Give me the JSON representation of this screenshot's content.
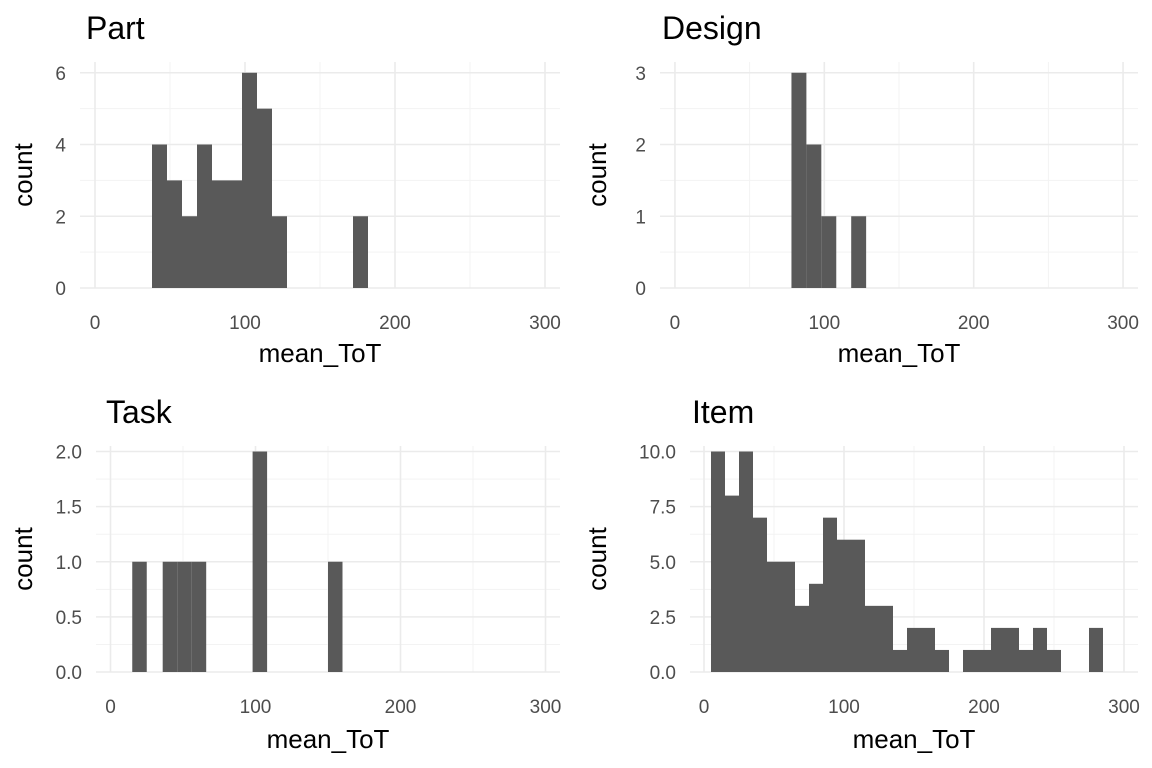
{
  "chart_data": [
    {
      "type": "bar",
      "title": "Part",
      "xlabel": "mean_ToT",
      "ylabel": "count",
      "xlim": [
        -10,
        310
      ],
      "ylim": [
        0,
        6.3
      ],
      "x_ticks": [
        0,
        100,
        200,
        300
      ],
      "y_ticks": [
        0,
        2,
        4,
        6
      ],
      "y_tick_labels": [
        "0",
        "2",
        "4",
        "6"
      ],
      "grid": true,
      "bin_width": 10,
      "bins": [
        {
          "x0": 38,
          "x1": 48,
          "count": 4
        },
        {
          "x0": 48,
          "x1": 58,
          "count": 3
        },
        {
          "x0": 58,
          "x1": 68,
          "count": 2
        },
        {
          "x0": 68,
          "x1": 78,
          "count": 4
        },
        {
          "x0": 78,
          "x1": 88,
          "count": 3
        },
        {
          "x0": 88,
          "x1": 98,
          "count": 3
        },
        {
          "x0": 98,
          "x1": 108,
          "count": 6
        },
        {
          "x0": 108,
          "x1": 118,
          "count": 5
        },
        {
          "x0": 118,
          "x1": 128,
          "count": 2
        },
        {
          "x0": 172,
          "x1": 182,
          "count": 2
        }
      ]
    },
    {
      "type": "bar",
      "title": "Design",
      "xlabel": "mean_ToT",
      "ylabel": "count",
      "xlim": [
        -10,
        310
      ],
      "ylim": [
        0,
        3.15
      ],
      "x_ticks": [
        0,
        100,
        200,
        300
      ],
      "y_ticks": [
        0,
        1,
        2,
        3
      ],
      "y_tick_labels": [
        "0",
        "1",
        "2",
        "3"
      ],
      "grid": true,
      "bin_width": 10,
      "bins": [
        {
          "x0": 78,
          "x1": 88,
          "count": 3
        },
        {
          "x0": 88,
          "x1": 98,
          "count": 2
        },
        {
          "x0": 98,
          "x1": 108,
          "count": 1
        },
        {
          "x0": 118,
          "x1": 128,
          "count": 1
        }
      ]
    },
    {
      "type": "bar",
      "title": "Task",
      "xlabel": "mean_ToT",
      "ylabel": "count",
      "xlim": [
        -10,
        310
      ],
      "ylim": [
        0,
        2.05
      ],
      "x_ticks": [
        0,
        100,
        200,
        300
      ],
      "y_ticks": [
        0,
        0.5,
        1,
        1.5,
        2
      ],
      "y_tick_labels": [
        "0.0",
        "0.5",
        "1.0",
        "1.5",
        "2.0"
      ],
      "grid": true,
      "bin_width": 10,
      "bins": [
        {
          "x0": 15,
          "x1": 25,
          "count": 1
        },
        {
          "x0": 36,
          "x1": 46,
          "count": 1
        },
        {
          "x0": 46,
          "x1": 56,
          "count": 1
        },
        {
          "x0": 56,
          "x1": 66,
          "count": 1
        },
        {
          "x0": 98,
          "x1": 108,
          "count": 2
        },
        {
          "x0": 150,
          "x1": 160,
          "count": 1
        }
      ]
    },
    {
      "type": "bar",
      "title": "Item",
      "xlabel": "mean_ToT",
      "ylabel": "count",
      "xlim": [
        -10,
        310
      ],
      "ylim": [
        0,
        10.25
      ],
      "x_ticks": [
        0,
        100,
        200,
        300
      ],
      "y_ticks": [
        0,
        2.5,
        5,
        7.5,
        10
      ],
      "y_tick_labels": [
        "0.0",
        "2.5",
        "5.0",
        "7.5",
        "10.0"
      ],
      "grid": true,
      "bin_width": 10,
      "bins": [
        {
          "x0": 5,
          "x1": 15,
          "count": 10
        },
        {
          "x0": 15,
          "x1": 25,
          "count": 8
        },
        {
          "x0": 25,
          "x1": 35,
          "count": 10
        },
        {
          "x0": 35,
          "x1": 45,
          "count": 7
        },
        {
          "x0": 45,
          "x1": 55,
          "count": 5
        },
        {
          "x0": 55,
          "x1": 65,
          "count": 5
        },
        {
          "x0": 65,
          "x1": 75,
          "count": 3
        },
        {
          "x0": 75,
          "x1": 85,
          "count": 4
        },
        {
          "x0": 85,
          "x1": 95,
          "count": 7
        },
        {
          "x0": 95,
          "x1": 105,
          "count": 6
        },
        {
          "x0": 105,
          "x1": 115,
          "count": 6
        },
        {
          "x0": 115,
          "x1": 125,
          "count": 3
        },
        {
          "x0": 125,
          "x1": 135,
          "count": 3
        },
        {
          "x0": 135,
          "x1": 145,
          "count": 1
        },
        {
          "x0": 145,
          "x1": 155,
          "count": 2
        },
        {
          "x0": 155,
          "x1": 165,
          "count": 2
        },
        {
          "x0": 165,
          "x1": 175,
          "count": 1
        },
        {
          "x0": 185,
          "x1": 195,
          "count": 1
        },
        {
          "x0": 195,
          "x1": 205,
          "count": 1
        },
        {
          "x0": 205,
          "x1": 215,
          "count": 2
        },
        {
          "x0": 215,
          "x1": 225,
          "count": 2
        },
        {
          "x0": 225,
          "x1": 235,
          "count": 1
        },
        {
          "x0": 235,
          "x1": 245,
          "count": 2
        },
        {
          "x0": 245,
          "x1": 255,
          "count": 1
        },
        {
          "x0": 275,
          "x1": 285,
          "count": 2
        }
      ]
    }
  ],
  "colors": {
    "bar": "#595959",
    "grid": "#ebebeb",
    "tick_text": "#4d4d4d",
    "label_text": "#000000"
  }
}
